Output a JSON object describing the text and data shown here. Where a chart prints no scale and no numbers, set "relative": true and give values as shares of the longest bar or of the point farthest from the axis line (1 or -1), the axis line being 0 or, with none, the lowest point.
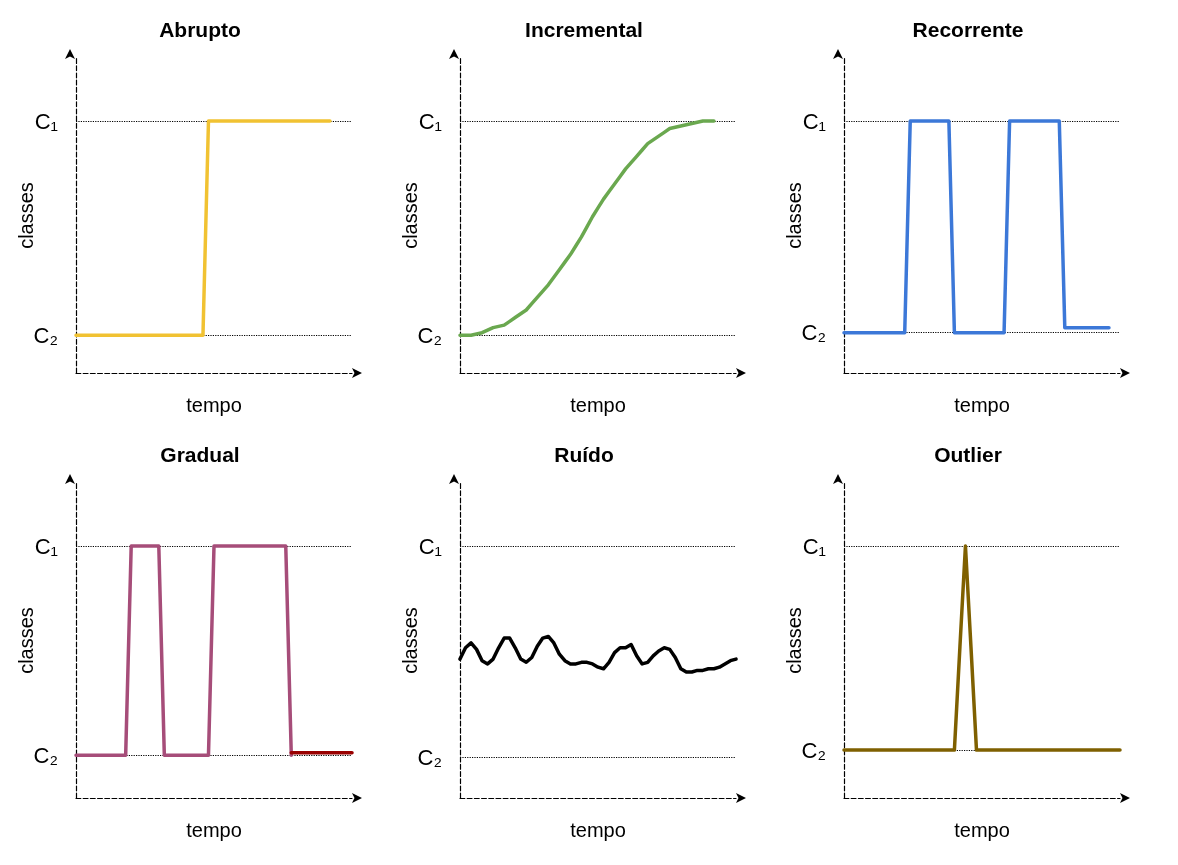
{
  "chart_data": [
    {
      "type": "line",
      "title": "Abrupto",
      "xlabel": "tempo",
      "ylabel": "classes",
      "relative": true,
      "categories": [
        null,
        null,
        null,
        null,
        null,
        null,
        null,
        null,
        null,
        null,
        null,
        null,
        null,
        null,
        null,
        null,
        null,
        null,
        null,
        null,
        null,
        null,
        null,
        null,
        null,
        null,
        null,
        null,
        null,
        null,
        null,
        null,
        null,
        null,
        null,
        null,
        null,
        null,
        null,
        null,
        null,
        null,
        null,
        null,
        null,
        null,
        null,
        null,
        null,
        null,
        null
      ],
      "marker": "none",
      "line_style": "solid",
      "ref_lines": [
        {
          "axis": "y",
          "value": 1,
          "label": "C₁",
          "color": "#000000",
          "line_style": "dotted"
        },
        {
          "axis": "y",
          "value": 0.15,
          "label": "C₂",
          "color": "#000000",
          "line_style": "dotted"
        }
      ],
      "series": [
        {
          "color": "#f1c232",
          "values": [
            0.15,
            0.15,
            0.15,
            0.15,
            0.15,
            0.15,
            0.15,
            0.15,
            0.15,
            0.15,
            0.15,
            0.15,
            0.15,
            0.15,
            0.15,
            0.15,
            0.15,
            0.15,
            0.15,
            0.15,
            0.15,
            0.15,
            0.15,
            0.15,
            1,
            1,
            1,
            1,
            1,
            1,
            1,
            1,
            1,
            1,
            1,
            1,
            1,
            1,
            1,
            1,
            1,
            1,
            1,
            1,
            1,
            1,
            1,
            null,
            null,
            null,
            null
          ]
        }
      ]
    },
    {
      "type": "line",
      "title": "Incremental",
      "xlabel": "tempo",
      "ylabel": "classes",
      "relative": true,
      "categories": [
        null,
        null,
        null,
        null,
        null,
        null,
        null,
        null,
        null,
        null,
        null,
        null,
        null,
        null,
        null,
        null,
        null,
        null,
        null,
        null,
        null,
        null,
        null,
        null,
        null,
        null,
        null,
        null,
        null,
        null,
        null,
        null,
        null,
        null,
        null,
        null,
        null,
        null,
        null,
        null,
        null,
        null,
        null,
        null,
        null,
        null,
        null,
        null,
        null,
        null,
        null
      ],
      "marker": "none",
      "line_style": "solid",
      "ref_lines": [
        {
          "axis": "y",
          "value": 1,
          "label": "C₁",
          "color": "#000000",
          "line_style": "dotted"
        },
        {
          "axis": "y",
          "value": 0.15,
          "label": "C₂",
          "color": "#000000",
          "line_style": "dotted"
        }
      ],
      "series": [
        {
          "color": "#6aa84f",
          "values": [
            0.15,
            0.15,
            0.15,
            0.155,
            0.16,
            0.17,
            0.18,
            0.185,
            0.19,
            0.205,
            0.22,
            0.235,
            0.25,
            0.275,
            0.3,
            0.325,
            0.35,
            0.38,
            0.41,
            0.44,
            0.47,
            0.505,
            0.54,
            0.58,
            0.62,
            0.655,
            0.69,
            0.72,
            0.75,
            0.78,
            0.81,
            0.835,
            0.86,
            0.885,
            0.91,
            0.925,
            0.94,
            0.955,
            0.97,
            0.975,
            0.98,
            0.985,
            0.99,
            0.995,
            1,
            1,
            1,
            null,
            null,
            null,
            null
          ]
        }
      ]
    },
    {
      "type": "line",
      "title": "Recorrente",
      "xlabel": "tempo",
      "ylabel": "classes",
      "relative": true,
      "categories": [
        null,
        null,
        null,
        null,
        null,
        null,
        null,
        null,
        null,
        null,
        null,
        null,
        null,
        null,
        null,
        null,
        null,
        null,
        null,
        null,
        null,
        null,
        null,
        null,
        null,
        null,
        null,
        null,
        null,
        null,
        null,
        null,
        null,
        null,
        null,
        null,
        null,
        null,
        null,
        null,
        null,
        null,
        null,
        null,
        null,
        null,
        null,
        null,
        null,
        null,
        null
      ],
      "marker": "none",
      "line_style": "solid",
      "ref_lines": [
        {
          "axis": "y",
          "value": 1,
          "label": "C₁",
          "color": "#000000",
          "line_style": "dotted"
        },
        {
          "axis": "y",
          "value": 0.16,
          "label": "C₂",
          "color": "#000000",
          "line_style": "dotted"
        }
      ],
      "series": [
        {
          "color": "#3c78d8",
          "values": [
            0.16,
            0.16,
            0.16,
            0.16,
            0.16,
            0.16,
            0.16,
            0.16,
            0.16,
            0.16,
            0.16,
            0.16,
            1,
            1,
            1,
            1,
            1,
            1,
            1,
            1,
            0.16,
            0.16,
            0.16,
            0.16,
            0.16,
            0.16,
            0.16,
            0.16,
            0.16,
            0.16,
            1,
            1,
            1,
            1,
            1,
            1,
            1,
            1,
            1,
            1,
            0.18,
            0.18,
            0.18,
            0.18,
            0.18,
            0.18,
            0.18,
            0.18,
            0.18,
            null,
            null
          ]
        }
      ]
    },
    {
      "type": "line",
      "title": "Gradual",
      "xlabel": "tempo",
      "ylabel": "classes",
      "relative": true,
      "categories": [
        null,
        null,
        null,
        null,
        null,
        null,
        null,
        null,
        null,
        null,
        null,
        null,
        null,
        null,
        null,
        null,
        null,
        null,
        null,
        null,
        null,
        null,
        null,
        null,
        null,
        null,
        null,
        null,
        null,
        null,
        null,
        null,
        null,
        null,
        null,
        null,
        null,
        null,
        null,
        null,
        null,
        null,
        null,
        null,
        null,
        null,
        null,
        null,
        null,
        null,
        null
      ],
      "marker": "none",
      "line_style": "solid",
      "ref_lines": [
        {
          "axis": "y",
          "value": 1,
          "label": "C₁",
          "color": "#000000",
          "line_style": "dotted"
        },
        {
          "axis": "y",
          "value": 0.17,
          "label": "C₂",
          "color": "#000000",
          "line_style": "dotted"
        }
      ],
      "series": [
        {
          "color": "#a64d79",
          "values": [
            0.17,
            0.17,
            0.17,
            0.17,
            0.17,
            0.17,
            0.17,
            0.17,
            0.17,
            0.17,
            1,
            1,
            1,
            1,
            1,
            1,
            0.17,
            0.17,
            0.17,
            0.17,
            0.17,
            0.17,
            0.17,
            0.17,
            0.17,
            1,
            1,
            1,
            1,
            1,
            1,
            1,
            1,
            1,
            1,
            1,
            1,
            1,
            1,
            0.17,
            null,
            null,
            null,
            null,
            null,
            null,
            null,
            null,
            null,
            null,
            null
          ]
        },
        {
          "color": "#990000",
          "values": [
            null,
            null,
            null,
            null,
            null,
            null,
            null,
            null,
            null,
            null,
            null,
            null,
            null,
            null,
            null,
            null,
            null,
            null,
            null,
            null,
            null,
            null,
            null,
            null,
            null,
            null,
            null,
            null,
            null,
            null,
            null,
            null,
            null,
            null,
            null,
            null,
            null,
            null,
            null,
            0.18,
            0.18,
            0.18,
            0.18,
            0.18,
            0.18,
            0.18,
            0.18,
            0.18,
            0.18,
            0.18,
            0.18
          ]
        }
      ]
    },
    {
      "type": "line",
      "title": "Ruído",
      "xlabel": "tempo",
      "ylabel": "classes",
      "relative": true,
      "categories": [
        null,
        null,
        null,
        null,
        null,
        null,
        null,
        null,
        null,
        null,
        null,
        null,
        null,
        null,
        null,
        null,
        null,
        null,
        null,
        null,
        null,
        null,
        null,
        null,
        null,
        null,
        null,
        null,
        null,
        null,
        null,
        null,
        null,
        null,
        null,
        null,
        null,
        null,
        null,
        null,
        null,
        null,
        null,
        null,
        null,
        null,
        null,
        null,
        null,
        null,
        null
      ],
      "marker": "none",
      "line_style": "solid",
      "ref_lines": [
        {
          "axis": "y",
          "value": 1.56,
          "label": "C₁",
          "color": "#000000",
          "line_style": "dotted"
        },
        {
          "axis": "y",
          "value": 0.25,
          "label": "C₂",
          "color": "#000000",
          "line_style": "dotted"
        }
      ],
      "series": [
        {
          "color": "#000000",
          "values": [
            0.86,
            0.93,
            0.96,
            0.92,
            0.85,
            0.83,
            0.86,
            0.93,
            0.99,
            0.99,
            0.93,
            0.86,
            0.84,
            0.87,
            0.94,
            0.99,
            1,
            0.96,
            0.89,
            0.85,
            0.83,
            0.83,
            0.84,
            0.84,
            0.83,
            0.81,
            0.8,
            0.84,
            0.9,
            0.93,
            0.93,
            0.95,
            0.88,
            0.83,
            0.84,
            0.88,
            0.91,
            0.93,
            0.92,
            0.87,
            0.8,
            0.78,
            0.78,
            0.79,
            0.79,
            0.8,
            0.8,
            0.81,
            0.83,
            0.85,
            0.86
          ]
        }
      ]
    },
    {
      "type": "line",
      "title": "Outlier",
      "xlabel": "tempo",
      "ylabel": "classes",
      "relative": true,
      "categories": [
        null,
        null,
        null,
        null,
        null,
        null,
        null,
        null,
        null,
        null,
        null,
        null,
        null,
        null,
        null,
        null,
        null,
        null,
        null,
        null,
        null,
        null,
        null,
        null,
        null,
        null,
        null,
        null,
        null,
        null,
        null,
        null,
        null,
        null,
        null,
        null,
        null,
        null,
        null,
        null,
        null,
        null,
        null,
        null,
        null,
        null,
        null,
        null,
        null,
        null,
        null
      ],
      "marker": "none",
      "line_style": "solid",
      "ref_lines": [
        {
          "axis": "y",
          "value": 1,
          "label": "C₁",
          "color": "#000000",
          "line_style": "dotted"
        },
        {
          "axis": "y",
          "value": 0.19,
          "label": "C₂",
          "color": "#000000",
          "line_style": "dotted"
        }
      ],
      "series": [
        {
          "color": "#7f6000",
          "values": [
            0.19,
            0.19,
            0.19,
            0.19,
            0.19,
            0.19,
            0.19,
            0.19,
            0.19,
            0.19,
            0.19,
            0.19,
            0.19,
            0.19,
            0.19,
            0.19,
            0.19,
            0.19,
            0.19,
            0.19,
            0.19,
            0.6,
            1,
            0.6,
            0.19,
            0.19,
            0.19,
            0.19,
            0.19,
            0.19,
            0.19,
            0.19,
            0.19,
            0.19,
            0.19,
            0.19,
            0.19,
            0.19,
            0.19,
            0.19,
            0.19,
            0.19,
            0.19,
            0.19,
            0.19,
            0.19,
            0.19,
            0.19,
            0.19,
            0.19,
            0.19
          ]
        }
      ]
    }
  ]
}
